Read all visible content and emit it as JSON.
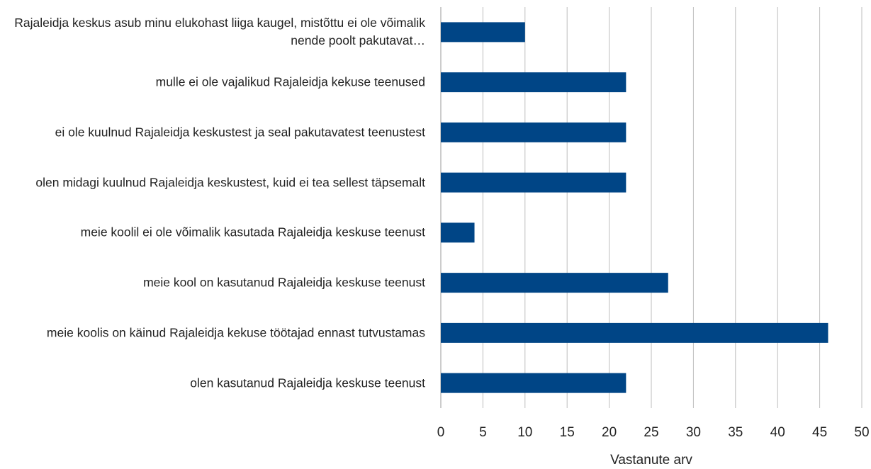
{
  "chart_data": {
    "type": "barh",
    "categories": [
      "Rajaleidja keskus asub minu elukohast liiga kaugel, mistõttu ei ole võimalik nende poolt pakutavat…",
      "mulle ei ole vajalikud Rajaleidja kekuse teenused",
      "ei ole kuulnud Rajaleidja keskustest ja seal pakutavatest teenustest",
      "olen midagi kuulnud Rajaleidja keskustest, kuid ei tea sellest täpsemalt",
      "meie koolil ei ole võimalik kasutada Rajaleidja keskuse teenust",
      "meie kool on kasutanud Rajaleidja keskuse teenust",
      "meie koolis on käinud Rajaleidja kekuse töötajad ennast tutvustamas",
      "olen kasutanud Rajaleidja keskuse teenust"
    ],
    "values": [
      10,
      22,
      22,
      22,
      4,
      27,
      46,
      22
    ],
    "color": "#004586",
    "xlabel": "Vastanute arv",
    "xlim": [
      0,
      50
    ],
    "xticks": [
      0,
      5,
      10,
      15,
      20,
      25,
      30,
      35,
      40,
      45,
      50
    ],
    "grid": true
  }
}
